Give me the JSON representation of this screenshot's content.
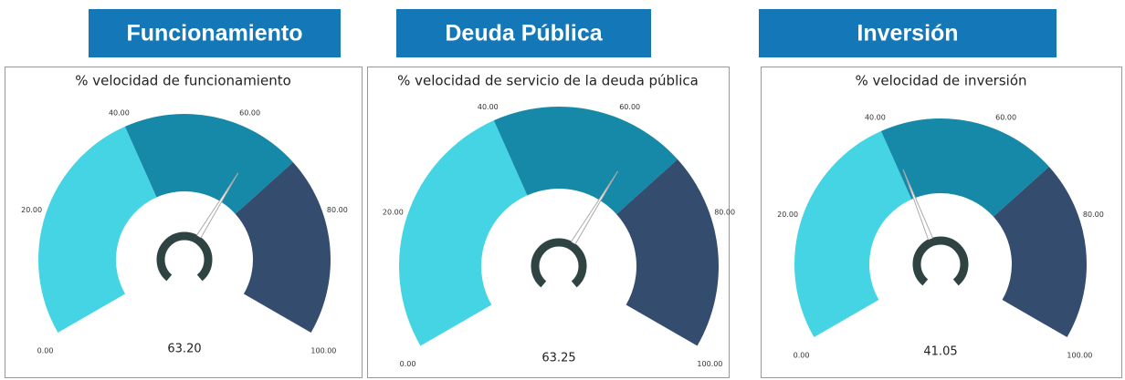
{
  "chart_data": [
    {
      "type": "gauge",
      "header": "Funcionamiento",
      "title": "% velocidad de funcionamiento",
      "values": [
        63.2
      ],
      "value_labels": [
        "63.20"
      ],
      "ylim": [
        0,
        100
      ],
      "yticks": [
        {
          "value": 0,
          "label": "0.00"
        },
        {
          "value": 20,
          "label": "20.00"
        },
        {
          "value": 40,
          "label": "40.00"
        },
        {
          "value": 60,
          "label": "60.00"
        },
        {
          "value": 80,
          "label": "80.00"
        },
        {
          "value": 100,
          "label": "100.00"
        }
      ],
      "bands": [
        {
          "from": 0,
          "to": 40,
          "color": "#45d4e4"
        },
        {
          "from": 40,
          "to": 70,
          "color": "#1689a8"
        },
        {
          "from": 70,
          "to": 100,
          "color": "#344c6e"
        }
      ]
    },
    {
      "type": "gauge",
      "header": "Deuda Pública",
      "title": "% velocidad de servicio de la deuda pública",
      "values": [
        63.25
      ],
      "value_labels": [
        "63.25"
      ],
      "ylim": [
        0,
        100
      ],
      "yticks": [
        {
          "value": 0,
          "label": "0.00"
        },
        {
          "value": 20,
          "label": "20.00"
        },
        {
          "value": 40,
          "label": "40.00"
        },
        {
          "value": 60,
          "label": "60.00"
        },
        {
          "value": 80,
          "label": "80.00"
        },
        {
          "value": 100,
          "label": "100.00"
        }
      ],
      "bands": [
        {
          "from": 0,
          "to": 40,
          "color": "#45d4e4"
        },
        {
          "from": 40,
          "to": 70,
          "color": "#1689a8"
        },
        {
          "from": 70,
          "to": 100,
          "color": "#344c6e"
        }
      ]
    },
    {
      "type": "gauge",
      "header": "Inversión",
      "title": "% velocidad de inversión",
      "values": [
        41.05
      ],
      "value_labels": [
        "41.05"
      ],
      "ylim": [
        0,
        100
      ],
      "yticks": [
        {
          "value": 0,
          "label": "0.00"
        },
        {
          "value": 20,
          "label": "20.00"
        },
        {
          "value": 40,
          "label": "40.00"
        },
        {
          "value": 60,
          "label": "60.00"
        },
        {
          "value": 80,
          "label": "80.00"
        },
        {
          "value": 100,
          "label": "100.00"
        }
      ],
      "bands": [
        {
          "from": 0,
          "to": 40,
          "color": "#45d4e4"
        },
        {
          "from": 40,
          "to": 70,
          "color": "#1689a8"
        },
        {
          "from": 70,
          "to": 100,
          "color": "#344c6e"
        }
      ]
    }
  ]
}
